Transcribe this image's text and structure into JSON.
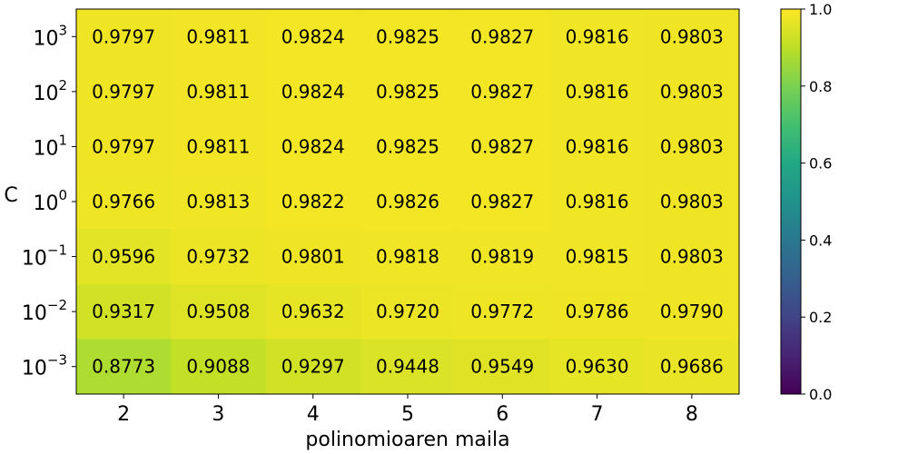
{
  "chart_data": {
    "type": "heatmap",
    "xlabel": "polinomioaren maila",
    "ylabel": "C",
    "x_categories": [
      "2",
      "3",
      "4",
      "5",
      "6",
      "7",
      "8"
    ],
    "y_categories": [
      {
        "base": "10",
        "exp": "3"
      },
      {
        "base": "10",
        "exp": "2"
      },
      {
        "base": "10",
        "exp": "1"
      },
      {
        "base": "10",
        "exp": "0"
      },
      {
        "base": "10",
        "exp": "−1"
      },
      {
        "base": "10",
        "exp": "−2"
      },
      {
        "base": "10",
        "exp": "−3"
      }
    ],
    "values": [
      [
        0.9797,
        0.9811,
        0.9824,
        0.9825,
        0.9827,
        0.9816,
        0.9803
      ],
      [
        0.9797,
        0.9811,
        0.9824,
        0.9825,
        0.9827,
        0.9816,
        0.9803
      ],
      [
        0.9797,
        0.9811,
        0.9824,
        0.9825,
        0.9827,
        0.9816,
        0.9803
      ],
      [
        0.9766,
        0.9813,
        0.9822,
        0.9826,
        0.9827,
        0.9816,
        0.9803
      ],
      [
        0.9596,
        0.9732,
        0.9801,
        0.9818,
        0.9819,
        0.9815,
        0.9803
      ],
      [
        0.9317,
        0.9508,
        0.9632,
        0.972,
        0.9772,
        0.9786,
        0.979
      ],
      [
        0.8773,
        0.9088,
        0.9297,
        0.9448,
        0.9549,
        0.963,
        0.9686
      ]
    ],
    "value_labels": [
      [
        "0.9797",
        "0.9811",
        "0.9824",
        "0.9825",
        "0.9827",
        "0.9816",
        "0.9803"
      ],
      [
        "0.9797",
        "0.9811",
        "0.9824",
        "0.9825",
        "0.9827",
        "0.9816",
        "0.9803"
      ],
      [
        "0.9797",
        "0.9811",
        "0.9824",
        "0.9825",
        "0.9827",
        "0.9816",
        "0.9803"
      ],
      [
        "0.9766",
        "0.9813",
        "0.9822",
        "0.9826",
        "0.9827",
        "0.9816",
        "0.9803"
      ],
      [
        "0.9596",
        "0.9732",
        "0.9801",
        "0.9818",
        "0.9819",
        "0.9815",
        "0.9803"
      ],
      [
        "0.9317",
        "0.9508",
        "0.9632",
        "0.9720",
        "0.9772",
        "0.9786",
        "0.9790"
      ],
      [
        "0.8773",
        "0.9088",
        "0.9297",
        "0.9448",
        "0.9549",
        "0.9630",
        "0.9686"
      ]
    ],
    "colorbar": {
      "colormap": "viridis",
      "range": [
        0.0,
        1.0
      ],
      "ticks": [
        "0.0",
        "0.2",
        "0.4",
        "0.6",
        "0.8",
        "1.0"
      ]
    }
  }
}
